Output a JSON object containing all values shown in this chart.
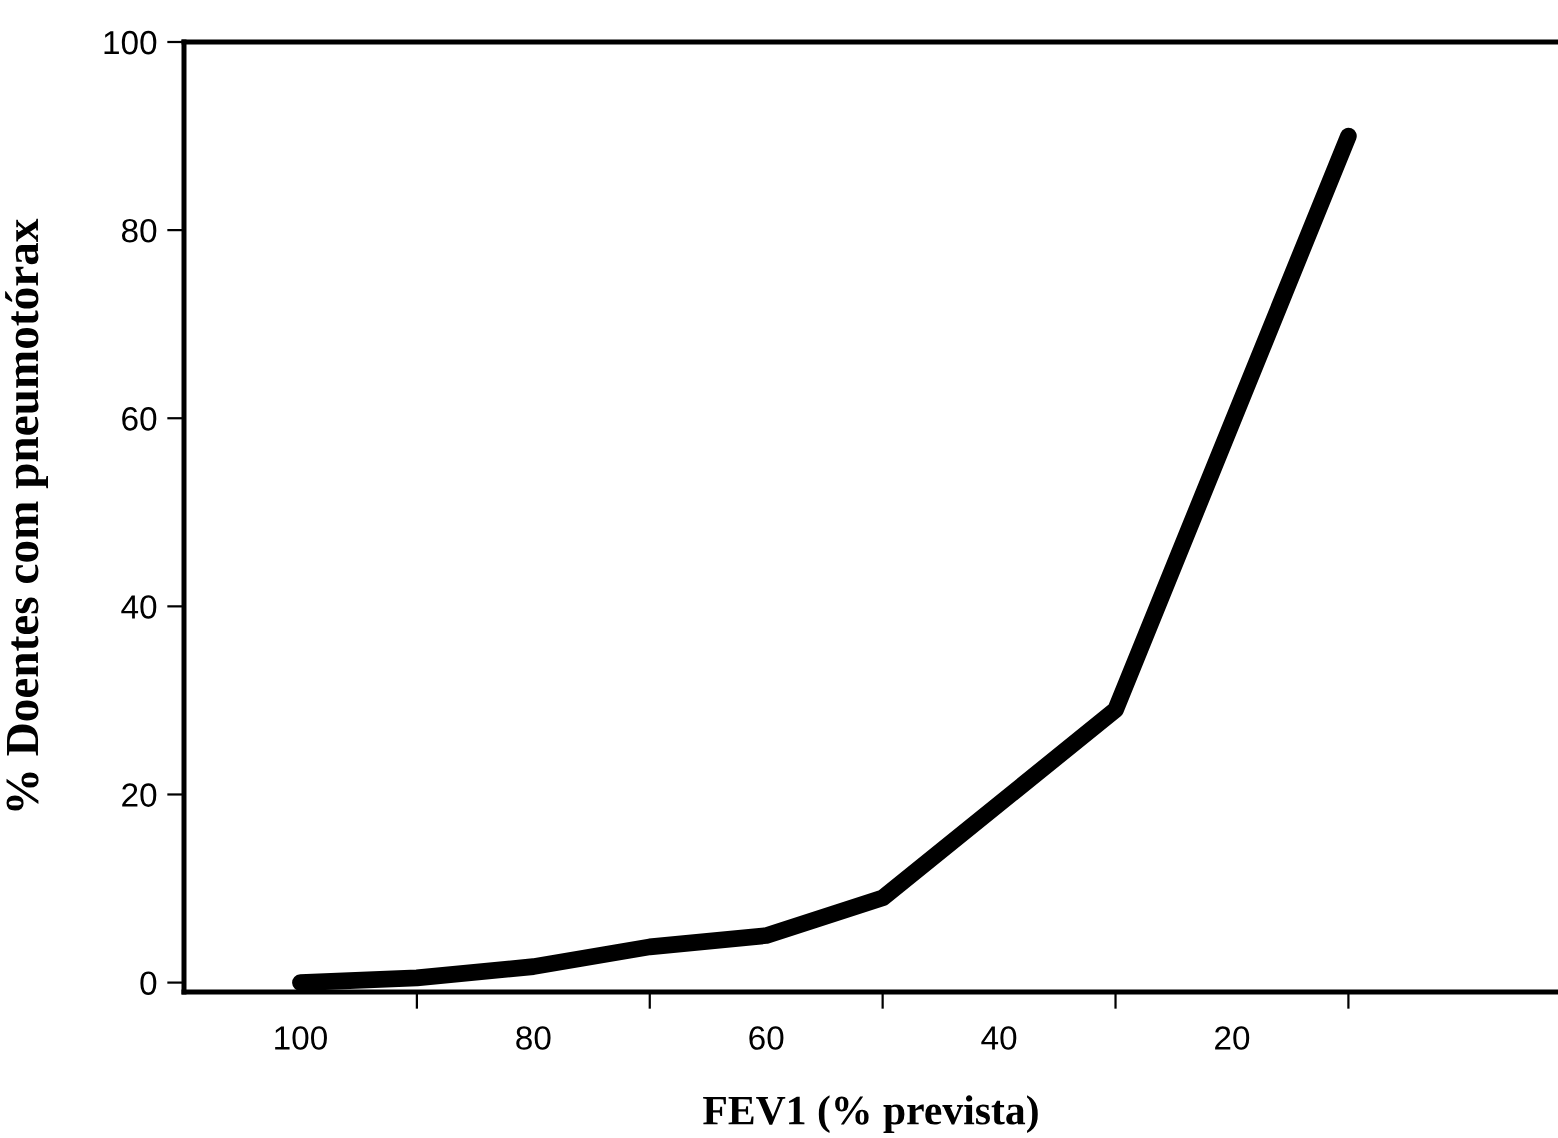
{
  "chart_data": {
    "type": "line",
    "xlabel": "FEV1 (% prevista)",
    "ylabel": "% Doentes com pneumotórax",
    "x": [
      100,
      90,
      80,
      70,
      60,
      50,
      30,
      10
    ],
    "values": [
      0,
      0.5,
      1.7,
      3.8,
      5,
      9,
      29,
      90
    ],
    "color": "#000000",
    "xlim": [
      110,
      -8
    ],
    "xticks": [
      {
        "value": 100,
        "label": "100"
      },
      {
        "value": 90,
        "label": null
      },
      {
        "value": 80,
        "label": "80"
      },
      {
        "value": 70,
        "label": null
      },
      {
        "value": 60,
        "label": "60"
      },
      {
        "value": 50,
        "label": null
      },
      {
        "value": 40,
        "label": "40"
      },
      {
        "value": 30,
        "label": null
      },
      {
        "value": 20,
        "label": "20"
      },
      {
        "value": 10,
        "label": null
      }
    ],
    "ylim": [
      -1,
      100
    ],
    "yticks": [
      0,
      20,
      40,
      60,
      80,
      100
    ],
    "grid": false,
    "legend": false,
    "marker": "none",
    "line_style": "solid"
  }
}
